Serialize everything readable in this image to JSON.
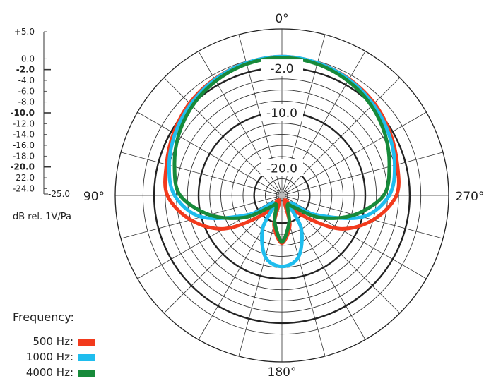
{
  "chart_data": {
    "type": "polar-line",
    "angle_labels": [
      "0°",
      "90°",
      "180°",
      "270°"
    ],
    "radial_axis": {
      "range_db": [
        -25,
        5
      ],
      "unit_label": "dB rel. 1V/Pa",
      "tick_labels": [
        "+5.0",
        "0.0",
        "-2.0",
        "-4.0",
        "-6.0",
        "-8.0",
        "-10.0",
        "-12.0",
        "-14.0",
        "-16.0",
        "-18.0",
        "-20.0",
        "-22.0",
        "-24.0",
        "-25.0"
      ],
      "tick_values": [
        5,
        0,
        -2,
        -4,
        -6,
        -8,
        -10,
        -12,
        -14,
        -16,
        -18,
        -20,
        -22,
        -24,
        -25
      ],
      "major_ticks": [
        -2,
        -10,
        -20
      ],
      "ring_labels": [
        "-2.0",
        "-10.0",
        "-20.0"
      ]
    },
    "grid": {
      "angle_step_deg": 15,
      "radial_step_db": 2
    },
    "angles_deg": [
      0,
      15,
      30,
      45,
      60,
      75,
      90,
      105,
      120,
      135,
      150,
      165,
      180
    ],
    "symmetric": true,
    "legend_title": "Frequency:",
    "legend_position": "bottom-left",
    "series": [
      {
        "name": "500 Hz:",
        "color": "#f23a1c",
        "values": [
          0,
          -0.3,
          -0.8,
          -1.5,
          -2.5,
          -3.5,
          -4.4,
          -8,
          -13,
          -20,
          -24,
          -19.5,
          -16.4
        ]
      },
      {
        "name": "1000 Hz:",
        "color": "#1fbdee",
        "values": [
          0,
          -0.3,
          -0.9,
          -1.8,
          -2.8,
          -4,
          -5.7,
          -10,
          -18,
          -23,
          -18,
          -13.5,
          -12.2
        ]
      },
      {
        "name": "4000 Hz:",
        "color": "#178a3a",
        "values": [
          -0.2,
          -0.5,
          -1.2,
          -2.2,
          -3.5,
          -5,
          -6.7,
          -11.5,
          -17,
          -22,
          -23,
          -20,
          -16.6
        ]
      }
    ]
  }
}
